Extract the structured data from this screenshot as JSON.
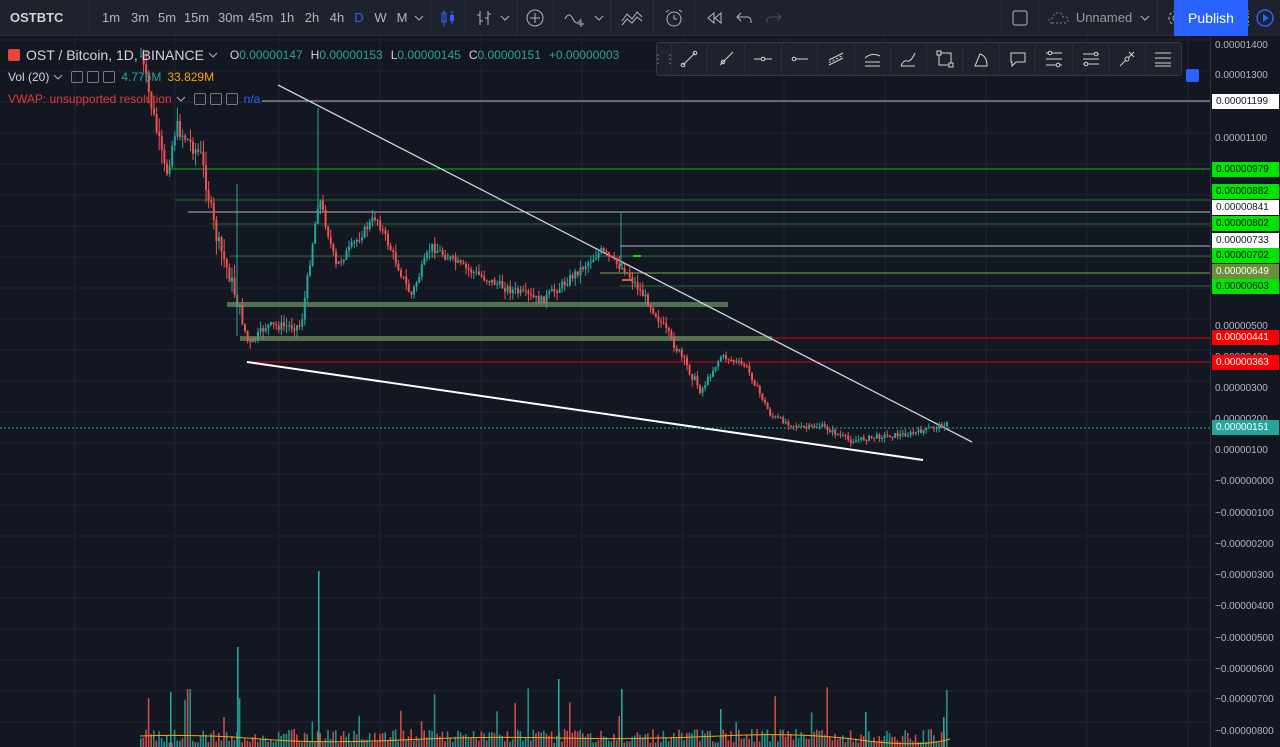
{
  "toolbar": {
    "symbol": "OSTBTC",
    "intervals": [
      "1m",
      "3m",
      "5m",
      "15m",
      "30m",
      "45m",
      "1h",
      "2h",
      "4h",
      "D",
      "W",
      "M"
    ],
    "active_interval": "D",
    "layout_name": "Unnamed",
    "publish_label": "Publish",
    "icons": [
      "candles-icon",
      "indicators-icon",
      "compare-icon",
      "templates-icon",
      "alert-icon",
      "replay-icon",
      "undo-icon",
      "redo-icon",
      "layout-icon",
      "cloud-icon",
      "settings-icon",
      "fullscreen-icon",
      "snapshot-icon"
    ]
  },
  "legend": {
    "title": "OST / Bitcoin, 1D, BINANCE",
    "ohlc": {
      "o_label": "O",
      "o_value": "0.00000147",
      "h_label": "H",
      "h_value": "0.00000153",
      "l_label": "L",
      "l_value": "0.00000145",
      "c_label": "C",
      "c_value": "0.00000151",
      "change": "+0.00000003"
    },
    "volume_label": "Vol (20)",
    "volume_value": "4.776M",
    "volume_ma": "33.829M",
    "vwap_label": "VWAP: unsupported resolution",
    "vwap_value": "n/a"
  },
  "price_scale": {
    "ticks": [
      "0.00001400",
      "0.00001300",
      "0.00001100",
      "0.00000500",
      "0.00000400",
      "0.00000300",
      "0.00000200",
      "0.00000100",
      "−0.00000000",
      "−0.00000100",
      "−0.00000200",
      "−0.00000300",
      "−0.00000400",
      "−0.00000500",
      "−0.00000600",
      "−0.00000700",
      "−0.00000800"
    ],
    "badges": [
      {
        "text": "0.00001199",
        "bg": "#ffffff",
        "fg": "#131722"
      },
      {
        "text": "0.00000979",
        "bg": "#00e600",
        "fg": "#131722"
      },
      {
        "text": "0.00000882",
        "bg": "#00e600",
        "fg": "#131722"
      },
      {
        "text": "0.00000841",
        "bg": "#ffffff",
        "fg": "#131722"
      },
      {
        "text": "0.00000802",
        "bg": "#00e600",
        "fg": "#131722"
      },
      {
        "text": "0.00000733",
        "bg": "#ffffff",
        "fg": "#131722"
      },
      {
        "text": "0.00000702",
        "bg": "#00e600",
        "fg": "#131722"
      },
      {
        "text": "0.00000649",
        "bg": "#6a8f3a",
        "fg": "#ffffff"
      },
      {
        "text": "0.00000603",
        "bg": "#00e600",
        "fg": "#131722"
      },
      {
        "text": "0.00000441",
        "bg": "#ff0000",
        "fg": "#ffffff"
      },
      {
        "text": "0.00000363",
        "bg": "#ff0000",
        "fg": "#ffffff"
      },
      {
        "text": "0.00000151",
        "bg": "#26a69a",
        "fg": "#ffffff"
      }
    ]
  },
  "drawing_tools": [
    "trend-line-icon",
    "ray-icon",
    "horizontal-line-icon",
    "horizontal-ray-icon",
    "parallel-channel-icon",
    "regression-icon",
    "brush-icon",
    "rectangle-icon",
    "path-icon",
    "callout-icon",
    "fib-retracement-icon",
    "fib-extension-icon",
    "pitchfork-icon",
    "more-tools-icon"
  ],
  "colors": {
    "up": "#26a69a",
    "down": "#ef5350",
    "accent": "#2962ff",
    "support_green": "#00e600",
    "resistance_red": "#ff0000",
    "trendline": "#d1d4dc"
  }
}
